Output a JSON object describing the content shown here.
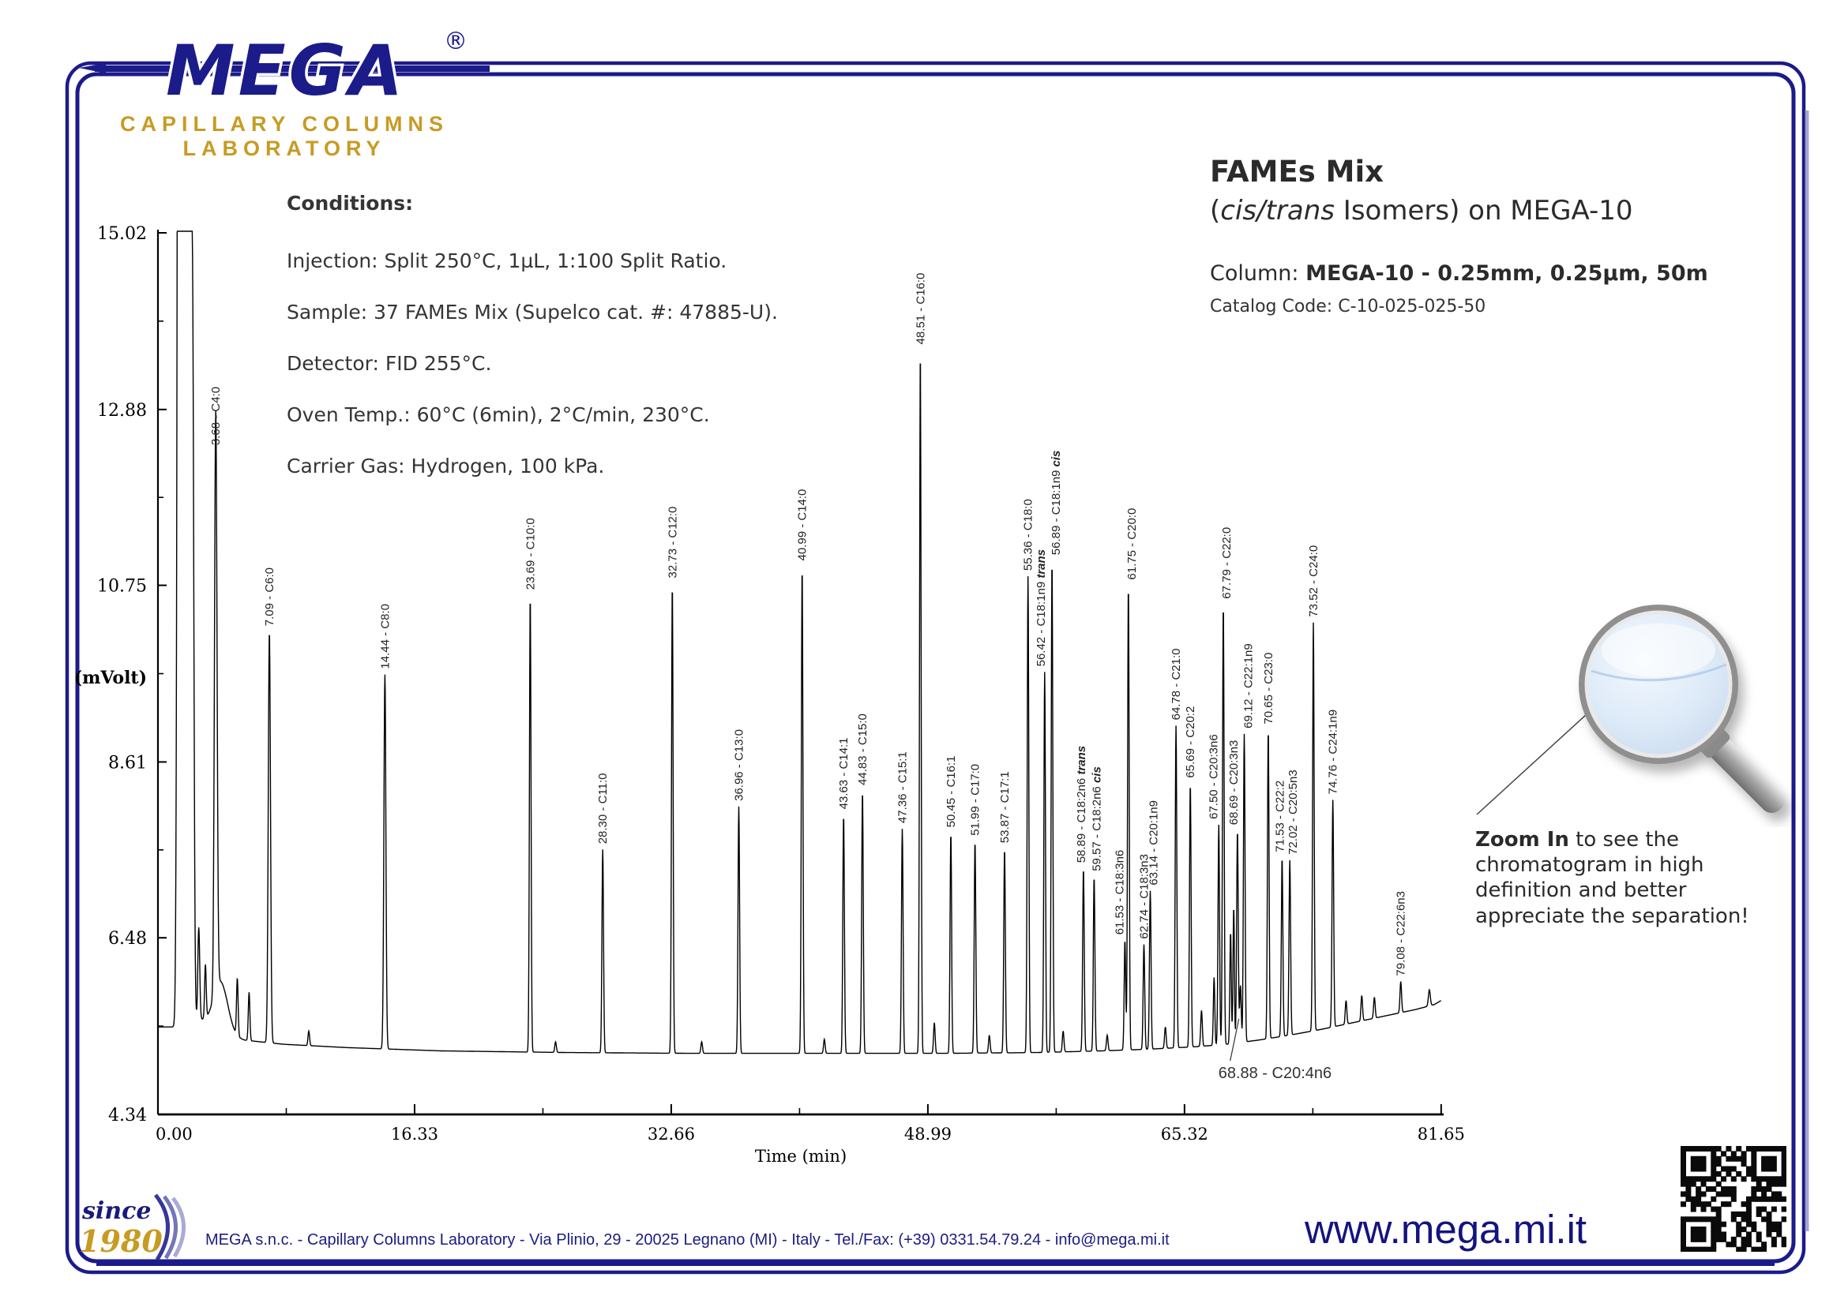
{
  "page": {
    "frame_color": "#1b1b8a",
    "accent_gold": "#c79b23",
    "accent_navy": "#14147d",
    "text_color": "#2b2b2b"
  },
  "logo": {
    "brand": "MEGA",
    "registered": "®",
    "subtitle1": "CAPILLARY COLUMNS",
    "subtitle2": "LABORATORY"
  },
  "title": {
    "line1": "FAMEs Mix",
    "line2_pre": "(",
    "line2_italic": "cis/trans",
    "line2_post": " Isomers) on MEGA-10",
    "column_label": "Column: ",
    "column_value": "MEGA-10 - 0.25mm, 0.25µm, 50m",
    "catalog": "Catalog Code: C-10-025-025-50"
  },
  "conditions": {
    "heading": "Conditions:",
    "lines": [
      "Injection: Split 250°C, 1µL, 1:100 Split Ratio.",
      "Sample: 37 FAMEs Mix (Supelco cat. #: 47885-U).",
      "Detector: FID 255°C.",
      "Oven Temp.: 60°C (6min), 2°C/min, 230°C.",
      "Carrier Gas: Hydrogen, 100 kPa."
    ]
  },
  "zoom_note": {
    "bold": "Zoom In",
    "rest": " to see the chromatogram in high definition and better appreciate the separation!"
  },
  "footer": {
    "since": "since",
    "year": "1980",
    "address": "MEGA s.n.c. - Capillary Columns Laboratory - Via Plinio, 29 - 20025 Legnano (MI) - Italy - Tel./Fax: (+39) 0331.54.79.24 - info@mega.mi.it",
    "website": "www.mega.mi.it"
  },
  "chart_data": {
    "type": "line",
    "title": "FAMEs Mix (cis/trans Isomers) on MEGA-10 chromatogram",
    "xlabel": "Time (min)",
    "ylabel": "(mVolt)",
    "xlim": [
      0,
      81.65
    ],
    "ylim": [
      4.34,
      15.02
    ],
    "x_ticks": [
      "0.00",
      "16.33",
      "32.66",
      "48.99",
      "65.32",
      "81.65"
    ],
    "y_ticks": [
      "15.02",
      "12.88",
      "10.75",
      "8.61",
      "6.48",
      "4.34"
    ],
    "grid": false,
    "baseline_mv": [
      [
        0,
        5.4
      ],
      [
        1.0,
        5.4
      ],
      [
        1.45,
        5.44
      ],
      [
        2.6,
        5.5
      ],
      [
        3.3,
        5.42
      ],
      [
        4.2,
        5.3
      ],
      [
        5.5,
        5.24
      ],
      [
        8,
        5.19
      ],
      [
        12,
        5.15
      ],
      [
        18,
        5.11
      ],
      [
        26,
        5.09
      ],
      [
        34,
        5.08
      ],
      [
        42,
        5.08
      ],
      [
        50,
        5.08
      ],
      [
        56,
        5.09
      ],
      [
        60,
        5.11
      ],
      [
        63,
        5.13
      ],
      [
        66,
        5.16
      ],
      [
        68,
        5.19
      ],
      [
        70,
        5.24
      ],
      [
        72,
        5.3
      ],
      [
        74,
        5.37
      ],
      [
        76,
        5.45
      ],
      [
        78,
        5.53
      ],
      [
        80,
        5.61
      ],
      [
        81.2,
        5.67
      ],
      [
        81.65,
        5.72
      ]
    ],
    "solvent_peaks": [
      [
        1.38,
        40,
        0.1
      ],
      [
        1.65,
        40,
        0.09
      ],
      [
        1.95,
        40,
        0.09
      ],
      [
        2.2,
        14,
        0.08
      ],
      [
        2.6,
        6.6,
        0.06
      ],
      [
        3.02,
        6.1,
        0.05
      ],
      [
        4.0,
        5.95,
        0.45
      ]
    ],
    "minor_peaks": [
      [
        5.05,
        5.95,
        0.05
      ],
      [
        5.8,
        5.82,
        0.05
      ],
      [
        9.6,
        5.35,
        0.05
      ],
      [
        25.3,
        5.22,
        0.05
      ],
      [
        34.6,
        5.22,
        0.05
      ],
      [
        42.4,
        5.25,
        0.05
      ],
      [
        49.4,
        5.45,
        0.05
      ],
      [
        52.9,
        5.3,
        0.05
      ],
      [
        57.6,
        5.35,
        0.05
      ],
      [
        60.4,
        5.3,
        0.05
      ],
      [
        64.1,
        5.4,
        0.05
      ],
      [
        66.4,
        5.6,
        0.05
      ],
      [
        67.2,
        6.0,
        0.045
      ],
      [
        68.25,
        6.55,
        0.045
      ],
      [
        68.45,
        6.85,
        0.045
      ],
      [
        75.6,
        5.72,
        0.05
      ],
      [
        76.6,
        5.78,
        0.05
      ],
      [
        77.4,
        5.76,
        0.05
      ],
      [
        80.9,
        5.85,
        0.06
      ]
    ],
    "peaks": [
      {
        "rt": 3.68,
        "apex_mv": 12.38,
        "w": 0.08,
        "label": "3.68 - C4:0"
      },
      {
        "rt": 7.09,
        "apex_mv": 10.19,
        "w": 0.07,
        "label": "7.09 - C6:0"
      },
      {
        "rt": 14.44,
        "apex_mv": 9.67,
        "w": 0.065,
        "label": "14.44 - C8:0"
      },
      {
        "rt": 23.69,
        "apex_mv": 10.63,
        "label": "23.69 - C10:0"
      },
      {
        "rt": 28.3,
        "apex_mv": 7.55,
        "label": "28.30 - C11:0"
      },
      {
        "rt": 32.73,
        "apex_mv": 10.77,
        "label": "32.73 - C12:0"
      },
      {
        "rt": 36.96,
        "apex_mv": 8.07,
        "label": "36.96 - C13:0"
      },
      {
        "rt": 40.99,
        "apex_mv": 10.98,
        "label": "40.99 - C14:0"
      },
      {
        "rt": 43.63,
        "apex_mv": 7.97,
        "label": "43.63 - C14:1"
      },
      {
        "rt": 44.83,
        "apex_mv": 8.26,
        "label": "44.83 - C15:0"
      },
      {
        "rt": 47.36,
        "apex_mv": 7.8,
        "label": "47.36 - C15:1"
      },
      {
        "rt": 48.51,
        "apex_mv": 13.6,
        "label": "48.51 - C16:0"
      },
      {
        "rt": 50.45,
        "apex_mv": 7.75,
        "label": "50.45 - C16:1"
      },
      {
        "rt": 51.99,
        "apex_mv": 7.65,
        "label": "51.99 - C17:0"
      },
      {
        "rt": 53.87,
        "apex_mv": 7.56,
        "label": "53.87 - C17:1"
      },
      {
        "rt": 55.36,
        "apex_mv": 10.86,
        "label": "55.36 - C18:0"
      },
      {
        "rt": 56.42,
        "apex_mv": 9.7,
        "ldx": -5,
        "label": "56.42 - C18:1n9 ",
        "suffix": "trans"
      },
      {
        "rt": 56.89,
        "apex_mv": 11.05,
        "ldx": 5,
        "label": "56.89 - C18:1n9 ",
        "suffix": "cis"
      },
      {
        "rt": 58.89,
        "apex_mv": 7.32,
        "ldx": -3,
        "label": "58.89 - C18:2n6 ",
        "suffix": "trans"
      },
      {
        "rt": 59.57,
        "apex_mv": 7.22,
        "ldx": 3,
        "label": "59.57 - C18:2n6 ",
        "suffix": "cis"
      },
      {
        "rt": 61.53,
        "apex_mv": 6.45,
        "ldx": -7,
        "label": "61.53 - C18:3n6"
      },
      {
        "rt": 61.75,
        "apex_mv": 10.75,
        "ldx": 4,
        "label": "61.75 - C20:0"
      },
      {
        "rt": 62.74,
        "apex_mv": 6.4,
        "label": "62.74 - C18:3n3"
      },
      {
        "rt": 63.14,
        "apex_mv": 7.05,
        "ldx": 4,
        "label": "63.14 - C20:1n9"
      },
      {
        "rt": 64.78,
        "apex_mv": 9.05,
        "label": "64.78 - C21:0"
      },
      {
        "rt": 65.69,
        "apex_mv": 8.35,
        "label": "65.69 - C20:2"
      },
      {
        "rt": 67.5,
        "apex_mv": 7.85,
        "ldx": -7,
        "label": "67.50 - C20:3n6"
      },
      {
        "rt": 67.79,
        "apex_mv": 10.52,
        "ldx": 4,
        "label": "67.79 - C22:0"
      },
      {
        "rt": 68.69,
        "apex_mv": 7.78,
        "ldx": -5,
        "label": "68.69 - C20:3n3"
      },
      {
        "rt": 68.88,
        "apex_mv": 5.9,
        "horizontal": true,
        "label": "68.88 - C20:4n6"
      },
      {
        "rt": 69.12,
        "apex_mv": 8.95,
        "ldx": 5,
        "label": "69.12 - C22:1n9"
      },
      {
        "rt": 70.65,
        "apex_mv": 9.0,
        "label": "70.65 - C23:0"
      },
      {
        "rt": 71.53,
        "apex_mv": 7.45,
        "ldx": -3,
        "label": "71.53 - C22:2"
      },
      {
        "rt": 72.02,
        "apex_mv": 7.42,
        "ldx": 4,
        "label": "72.02 - C20:5n3"
      },
      {
        "rt": 73.52,
        "apex_mv": 10.3,
        "label": "73.52 - C24:0"
      },
      {
        "rt": 74.76,
        "apex_mv": 8.15,
        "label": "74.76 - C24:1n9"
      },
      {
        "rt": 79.08,
        "apex_mv": 5.95,
        "label": "79.08 - C22:6n3"
      }
    ]
  }
}
